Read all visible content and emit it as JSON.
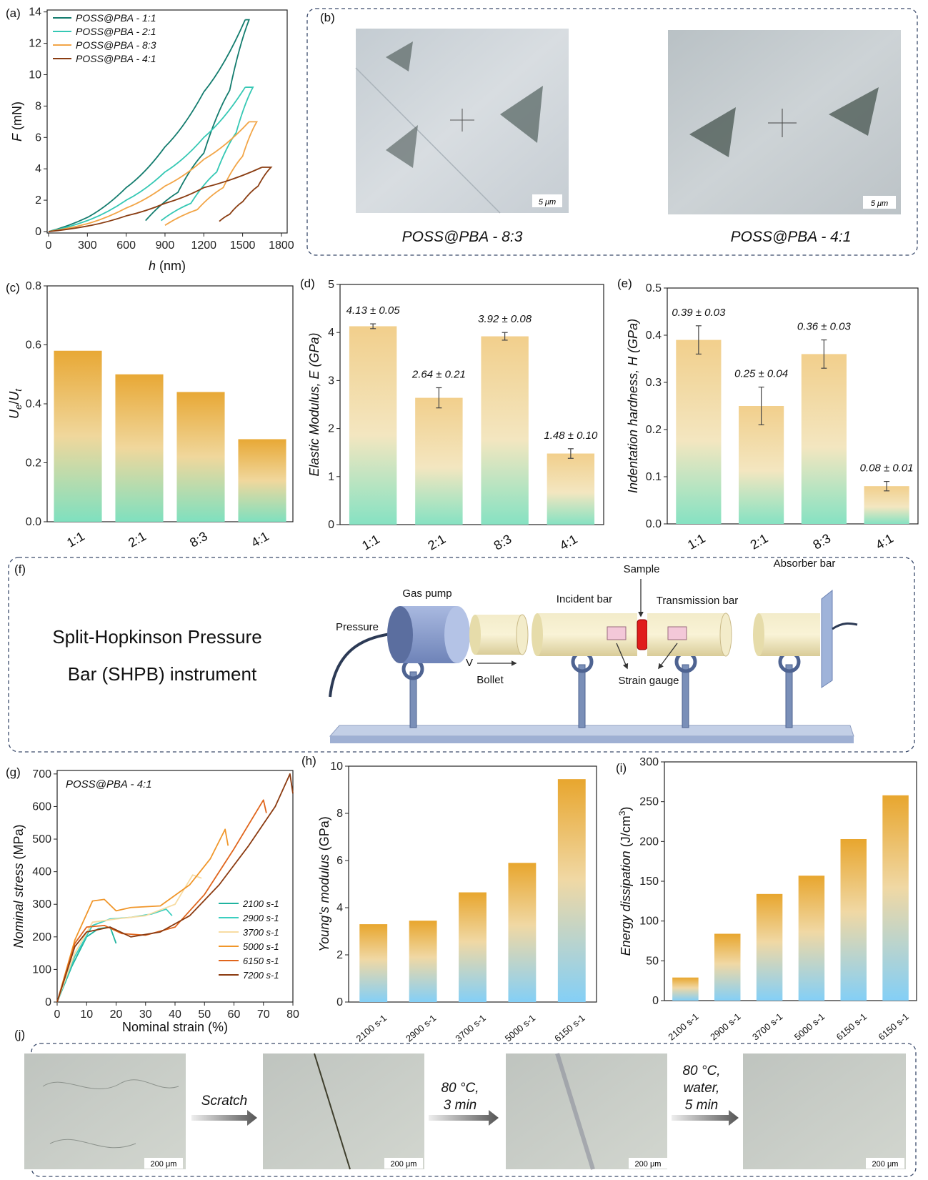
{
  "chart_data": [
    {
      "panel": "(a)",
      "type": "line",
      "xlabel": "h (nm)",
      "ylabel": "F (mN)",
      "xlim": [
        0,
        1800
      ],
      "ylim": [
        0,
        14
      ],
      "xticks": [
        "0",
        "300",
        "600",
        "900",
        "1200",
        "1500",
        "1800"
      ],
      "yticks": [
        "0",
        "2",
        "4",
        "6",
        "8",
        "10",
        "12",
        "14"
      ],
      "series": [
        {
          "name": "POSS@PBA - 1:1",
          "color": "#137c6e",
          "peak": [
            1520,
            13.5
          ],
          "loading": [
            [
              0,
              0
            ],
            [
              300,
              0.9
            ],
            [
              600,
              2.8
            ],
            [
              900,
              5.4
            ],
            [
              1200,
              8.9
            ],
            [
              1520,
              13.5
            ]
          ],
          "unloading": [
            [
              1550,
              13.5
            ],
            [
              1400,
              9.0
            ],
            [
              1200,
              5.0
            ],
            [
              1000,
              2.5
            ],
            [
              750,
              0.7
            ]
          ]
        },
        {
          "name": "POSS@PBA - 2:1",
          "color": "#35c8b4",
          "peak": [
            1580,
            9.2
          ],
          "loading": [
            [
              0,
              0
            ],
            [
              300,
              0.7
            ],
            [
              600,
              2.0
            ],
            [
              900,
              3.8
            ],
            [
              1200,
              6.0
            ],
            [
              1520,
              9.2
            ]
          ],
          "unloading": [
            [
              1580,
              9.2
            ],
            [
              1450,
              6.3
            ],
            [
              1300,
              3.8
            ],
            [
              1100,
              1.8
            ],
            [
              870,
              0.7
            ]
          ]
        },
        {
          "name": "POSS@PBA - 8:3",
          "color": "#f2a547",
          "peak": [
            1600,
            7.0
          ],
          "loading": [
            [
              0,
              0
            ],
            [
              300,
              0.5
            ],
            [
              600,
              1.5
            ],
            [
              900,
              2.9
            ],
            [
              1200,
              4.6
            ],
            [
              1550,
              7.0
            ]
          ],
          "unloading": [
            [
              1610,
              7.0
            ],
            [
              1500,
              4.8
            ],
            [
              1350,
              2.8
            ],
            [
              1150,
              1.4
            ],
            [
              900,
              0.4
            ]
          ]
        },
        {
          "name": "POSS@PBA - 4:1",
          "color": "#8a3d12",
          "peak": [
            1720,
            4.1
          ],
          "loading": [
            [
              0,
              0
            ],
            [
              300,
              0.35
            ],
            [
              600,
              1.0
            ],
            [
              900,
              1.8
            ],
            [
              1200,
              2.8
            ],
            [
              1650,
              4.1
            ]
          ],
          "unloading": [
            [
              1720,
              4.1
            ],
            [
              1620,
              2.9
            ],
            [
              1500,
              1.9
            ],
            [
              1400,
              1.1
            ],
            [
              1320,
              0.65
            ]
          ]
        }
      ]
    },
    {
      "panel": "(c)",
      "type": "bar",
      "ylabel": "Ue/Ut",
      "categories": [
        "1:1",
        "2:1",
        "8:3",
        "4:1"
      ],
      "values": [
        0.58,
        0.5,
        0.44,
        0.28
      ],
      "ylim": [
        0,
        0.8
      ],
      "yticks": [
        "0.0",
        "0.2",
        "0.4",
        "0.6",
        "0.8"
      ]
    },
    {
      "panel": "(d)",
      "type": "bar",
      "ylabel": "Elastic Modulus, E (GPa)",
      "categories": [
        "1:1",
        "2:1",
        "8:3",
        "4:1"
      ],
      "values": [
        4.13,
        2.64,
        3.92,
        1.48
      ],
      "errors": [
        0.05,
        0.21,
        0.08,
        0.1
      ],
      "labels": [
        "4.13 ± 0.05",
        "2.64 ± 0.21",
        "3.92 ± 0.08",
        "1.48 ± 0.10"
      ],
      "ylim": [
        0,
        5
      ],
      "yticks": [
        "0",
        "1",
        "2",
        "3",
        "4",
        "5"
      ]
    },
    {
      "panel": "(e)",
      "type": "bar",
      "ylabel": "Indentation hardness, H (GPa)",
      "categories": [
        "1:1",
        "2:1",
        "8:3",
        "4:1"
      ],
      "values": [
        0.39,
        0.25,
        0.36,
        0.08
      ],
      "errors": [
        0.03,
        0.04,
        0.03,
        0.01
      ],
      "labels": [
        "0.39 ± 0.03",
        "0.25 ± 0.04",
        "0.36 ± 0.03",
        "0.08 ± 0.01"
      ],
      "ylim": [
        0,
        0.5
      ],
      "yticks": [
        "0.0",
        "0.1",
        "0.2",
        "0.3",
        "0.4",
        "0.5"
      ]
    },
    {
      "panel": "(g)",
      "type": "line",
      "title": "POSS@PBA - 4:1",
      "xlabel": "Nominal strain (%)",
      "ylabel": "Nominal stress (MPa)",
      "xlim": [
        0,
        80
      ],
      "ylim": [
        0,
        700
      ],
      "xticks": [
        "0",
        "10",
        "20",
        "30",
        "40",
        "50",
        "60",
        "70",
        "80"
      ],
      "yticks": [
        "0",
        "100",
        "200",
        "300",
        "400",
        "500",
        "600",
        "700"
      ],
      "series": [
        {
          "name": "2100 s-1",
          "color": "#1fb39f",
          "points": [
            [
              0,
              0
            ],
            [
              5,
              110
            ],
            [
              10,
              200
            ],
            [
              14,
              225
            ],
            [
              18,
              230
            ],
            [
              20,
              180
            ]
          ]
        },
        {
          "name": "2900 s-1",
          "color": "#3ccfc0",
          "points": [
            [
              0,
              0
            ],
            [
              6,
              140
            ],
            [
              12,
              235
            ],
            [
              18,
              255
            ],
            [
              25,
              260
            ],
            [
              32,
              270
            ],
            [
              37,
              285
            ],
            [
              39,
              265
            ]
          ]
        },
        {
          "name": "3700 s-1",
          "color": "#f7dca3",
          "points": [
            [
              0,
              0
            ],
            [
              6,
              150
            ],
            [
              12,
              245
            ],
            [
              20,
              255
            ],
            [
              30,
              265
            ],
            [
              40,
              300
            ],
            [
              46,
              390
            ],
            [
              49,
              380
            ]
          ]
        },
        {
          "name": "5000 s-1",
          "color": "#f0962a",
          "points": [
            [
              0,
              0
            ],
            [
              6,
              190
            ],
            [
              12,
              310
            ],
            [
              16,
              315
            ],
            [
              20,
              280
            ],
            [
              25,
              290
            ],
            [
              35,
              295
            ],
            [
              45,
              360
            ],
            [
              52,
              440
            ],
            [
              57,
              530
            ],
            [
              58,
              480
            ]
          ]
        },
        {
          "name": "6150 s-1",
          "color": "#e0651c",
          "points": [
            [
              0,
              0
            ],
            [
              6,
              180
            ],
            [
              10,
              230
            ],
            [
              16,
              235
            ],
            [
              22,
              210
            ],
            [
              30,
              205
            ],
            [
              40,
              230
            ],
            [
              50,
              330
            ],
            [
              60,
              470
            ],
            [
              70,
              620
            ],
            [
              71,
              580
            ]
          ]
        },
        {
          "name": "7200 s-1",
          "color": "#8b3a10",
          "points": [
            [
              0,
              0
            ],
            [
              6,
              170
            ],
            [
              10,
              215
            ],
            [
              18,
              230
            ],
            [
              25,
              200
            ],
            [
              35,
              215
            ],
            [
              45,
              265
            ],
            [
              55,
              360
            ],
            [
              65,
              480
            ],
            [
              74,
              600
            ],
            [
              79,
              700
            ],
            [
              80,
              640
            ]
          ]
        }
      ]
    },
    {
      "panel": "(h)",
      "type": "bar",
      "ylabel": "Young's modulus (GPa)",
      "categories": [
        "2100 s-1",
        "2900 s-1",
        "3700 s-1",
        "5000 s-1",
        "6150 s-1"
      ],
      "values": [
        3.3,
        3.45,
        4.65,
        5.9,
        9.45
      ],
      "ylim": [
        0,
        10
      ],
      "yticks": [
        "0",
        "2",
        "4",
        "6",
        "8",
        "10"
      ]
    },
    {
      "panel": "(i)",
      "type": "bar",
      "ylabel": "Energy dissipation (J/cm3)",
      "categories": [
        "2100 s-1",
        "2900 s-1",
        "3700 s-1",
        "5000 s-1",
        "6150 s-1",
        "6150 s-1"
      ],
      "values": [
        29,
        84,
        134,
        157,
        203,
        258
      ],
      "ylim": [
        0,
        300
      ],
      "yticks": [
        "0",
        "50",
        "100",
        "150",
        "200",
        "250",
        "300"
      ]
    }
  ],
  "panels": {
    "a": "(a)",
    "b": "(b)",
    "c": "(c)",
    "d": "(d)",
    "e": "(e)",
    "f": "(f)",
    "g": "(g)",
    "h": "(h)",
    "i": "(i)",
    "j": "(j)"
  },
  "micrographs": {
    "left_caption": "POSS@PBA - 8:3",
    "right_caption": "POSS@PBA - 4:1",
    "scale": "5 μm"
  },
  "shpb": {
    "title_line1": "Split-Hopkinson Pressure",
    "title_line2": "Bar (SHPB) instrument",
    "labels": {
      "gas_pump": "Gas pump",
      "pressure": "Pressure",
      "incident_bar": "Incident bar",
      "sample": "Sample",
      "transmission_bar": "Transmission bar",
      "absorber_bar": "Absorber bar",
      "strain_gauge": "Strain gauge",
      "v": "V",
      "bollet": "Bollet"
    }
  },
  "healing": {
    "step1": "Scratch",
    "step2_l1": "80 °C,",
    "step2_l2": "3 min",
    "step3_l1": "80 °C,",
    "step3_l2": "water,",
    "step3_l3": "5 min",
    "scale": "200 μm"
  },
  "colors": {
    "bar_top_orange": "#e9a93a",
    "bar_bottom_green": "#7fe0bf",
    "bar_top_cream": "#f3d08e",
    "bar_bottom_blue": "#7ecdf6",
    "dash_border": "#3a4a6b"
  }
}
